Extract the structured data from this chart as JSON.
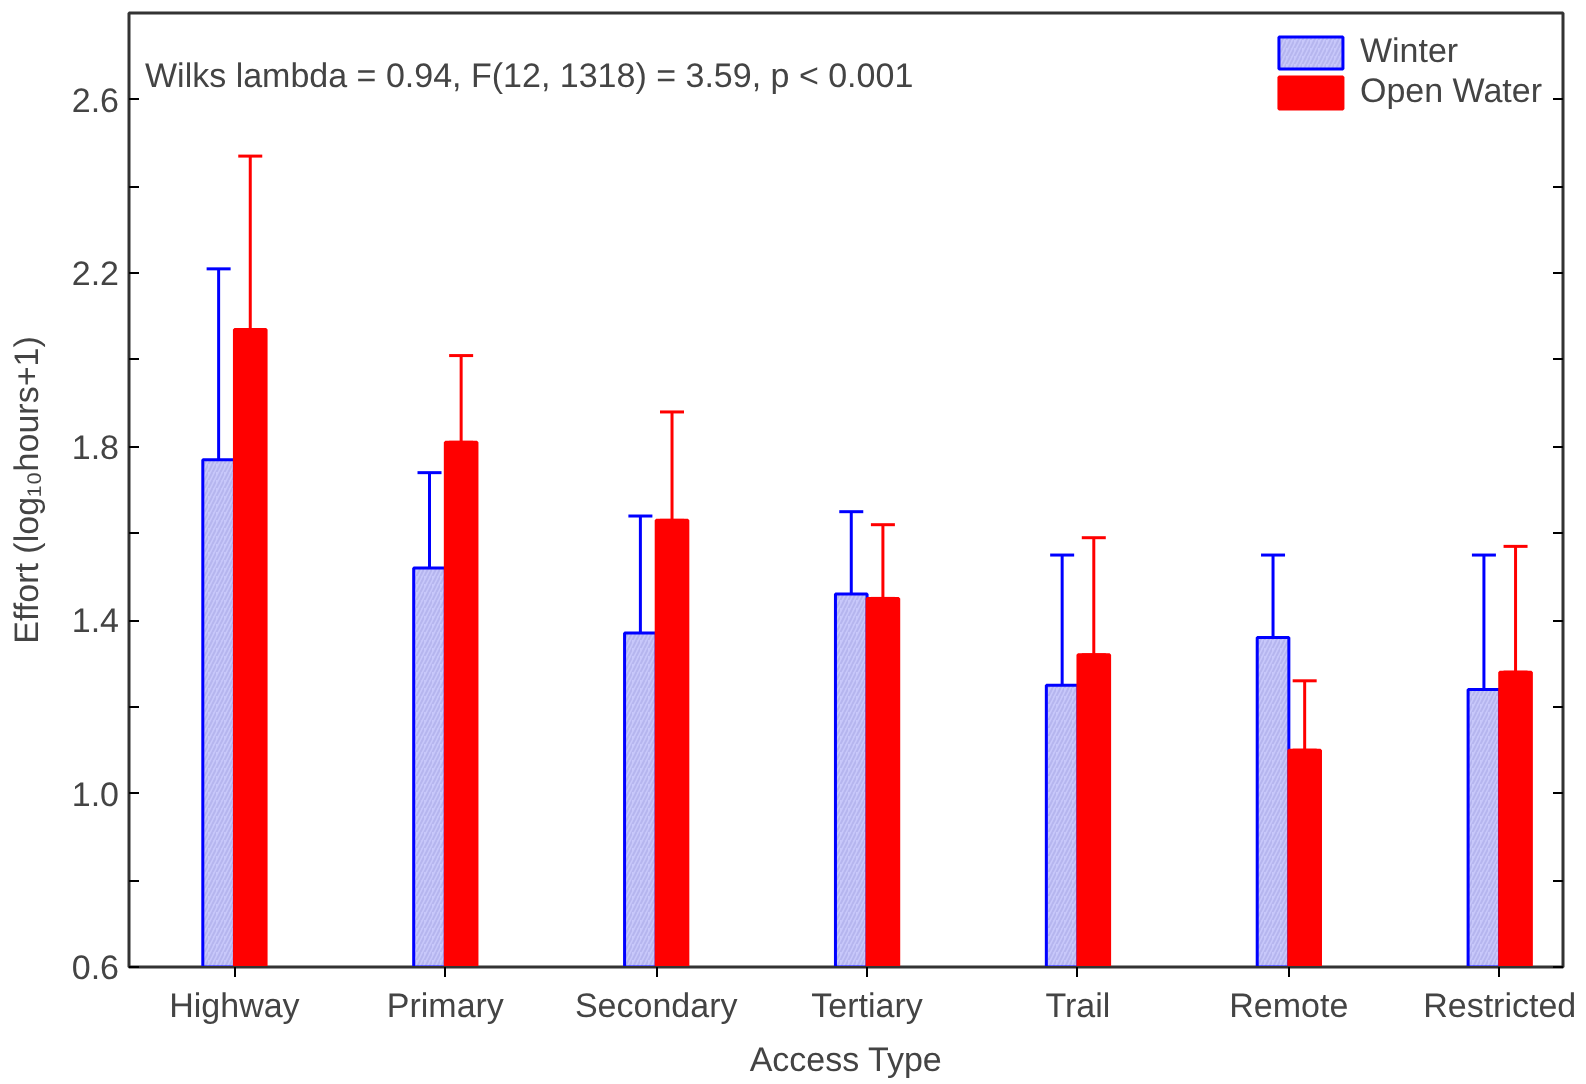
{
  "chart_data": {
    "type": "bar",
    "xlabel": "Access Type",
    "ylabel": "Effort (log₁₀hours+1)",
    "categories": [
      "Highway",
      "Primary",
      "Secondary",
      "Tertiary",
      "Trail",
      "Remote",
      "Restricted"
    ],
    "series": [
      {
        "name": "Winter",
        "color": "#c8c8fa",
        "values": [
          1.77,
          1.52,
          1.37,
          1.46,
          1.25,
          1.36,
          1.24
        ],
        "errors": [
          [
            1.32,
            2.21
          ],
          [
            1.28,
            1.74
          ],
          [
            1.1,
            1.64
          ],
          [
            1.27,
            1.65
          ],
          [
            0.96,
            1.55
          ],
          [
            1.18,
            1.55
          ],
          [
            0.93,
            1.55
          ]
        ]
      },
      {
        "name": "Open Water",
        "color": "#ff0000",
        "values": [
          2.07,
          1.81,
          1.63,
          1.45,
          1.32,
          1.1,
          1.28
        ],
        "errors": [
          [
            2.07,
            2.47
          ],
          [
            1.81,
            2.01
          ],
          [
            1.63,
            1.88
          ],
          [
            1.45,
            1.62
          ],
          [
            1.32,
            1.59
          ],
          [
            1.1,
            1.26
          ],
          [
            1.28,
            1.57
          ]
        ]
      }
    ],
    "ylim": [
      0.6,
      2.8
    ],
    "yticks": [
      0.6,
      {
        "value": 0.8,
        "label": null
      },
      {
        "value": 1.0,
        "label": "1.0"
      },
      {
        "value": 1.2,
        "label": null
      },
      1.4,
      {
        "value": 1.6,
        "label": null
      },
      1.8,
      {
        "value": 2.0,
        "label": null
      },
      2.2,
      {
        "value": 2.4,
        "label": null
      },
      2.6
    ],
    "grid": false,
    "legend": "top right",
    "annotations": [
      "Wilks lambda = 0.94, F(12, 1318) = 3.59, p < 0.001"
    ]
  }
}
